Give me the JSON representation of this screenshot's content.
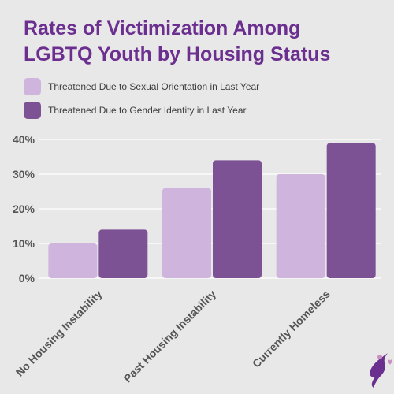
{
  "title": "Rates of Victimization Among LGBTQ Youth by Housing Status",
  "colors": {
    "background": "#e9e8e8",
    "title": "#6b2f8f",
    "series1": "#cfb4de",
    "series2": "#7d5294"
  },
  "chart_data": {
    "type": "bar",
    "categories": [
      "No Housing Instability",
      "Past Housing Instability",
      "Currently Homeless"
    ],
    "series": [
      {
        "name": "Threatened Due to Sexual Orientation in Last Year",
        "values": [
          10,
          26,
          30
        ]
      },
      {
        "name": "Threatened Due to Gender Identity in Last Year",
        "values": [
          14,
          34,
          39
        ]
      }
    ],
    "yticks": [
      "0%",
      "10%",
      "20%",
      "30%",
      "40%"
    ],
    "ylim": [
      0,
      40
    ],
    "grid": true,
    "legend_position": "top-left"
  },
  "logo": {
    "icon": "figure-with-heart-icon"
  }
}
